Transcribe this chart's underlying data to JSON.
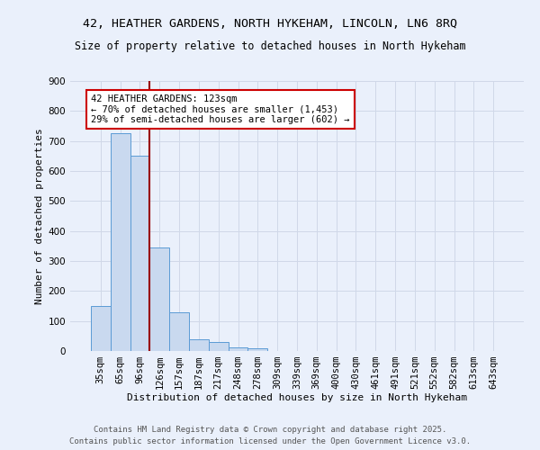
{
  "title_line1": "42, HEATHER GARDENS, NORTH HYKEHAM, LINCOLN, LN6 8RQ",
  "title_line2": "Size of property relative to detached houses in North Hykeham",
  "categories": [
    "35sqm",
    "65sqm",
    "96sqm",
    "126sqm",
    "157sqm",
    "187sqm",
    "217sqm",
    "248sqm",
    "278sqm",
    "309sqm",
    "339sqm",
    "369sqm",
    "400sqm",
    "430sqm",
    "461sqm",
    "491sqm",
    "521sqm",
    "552sqm",
    "582sqm",
    "613sqm",
    "643sqm"
  ],
  "values": [
    150,
    725,
    650,
    345,
    130,
    40,
    30,
    12,
    8,
    0,
    0,
    0,
    0,
    0,
    0,
    0,
    0,
    0,
    0,
    0,
    0
  ],
  "bar_color": "#c9d9ef",
  "bar_edge_color": "#5b9bd5",
  "grid_color": "#d0d8e8",
  "background_color": "#eaf0fb",
  "vline_color": "#990000",
  "annotation_text": "42 HEATHER GARDENS: 123sqm\n← 70% of detached houses are smaller (1,453)\n29% of semi-detached houses are larger (602) →",
  "annotation_box_facecolor": "#ffffff",
  "annotation_border_color": "#cc0000",
  "xlabel": "Distribution of detached houses by size in North Hykeham",
  "ylabel": "Number of detached properties",
  "footer_line1": "Contains HM Land Registry data © Crown copyright and database right 2025.",
  "footer_line2": "Contains public sector information licensed under the Open Government Licence v3.0.",
  "ylim": [
    0,
    900
  ],
  "yticks": [
    0,
    100,
    200,
    300,
    400,
    500,
    600,
    700,
    800,
    900
  ],
  "title_fontsize": 9.5,
  "subtitle_fontsize": 8.5,
  "axis_label_fontsize": 8,
  "tick_fontsize": 7.5,
  "annotation_fontsize": 7.5,
  "footer_fontsize": 6.5
}
